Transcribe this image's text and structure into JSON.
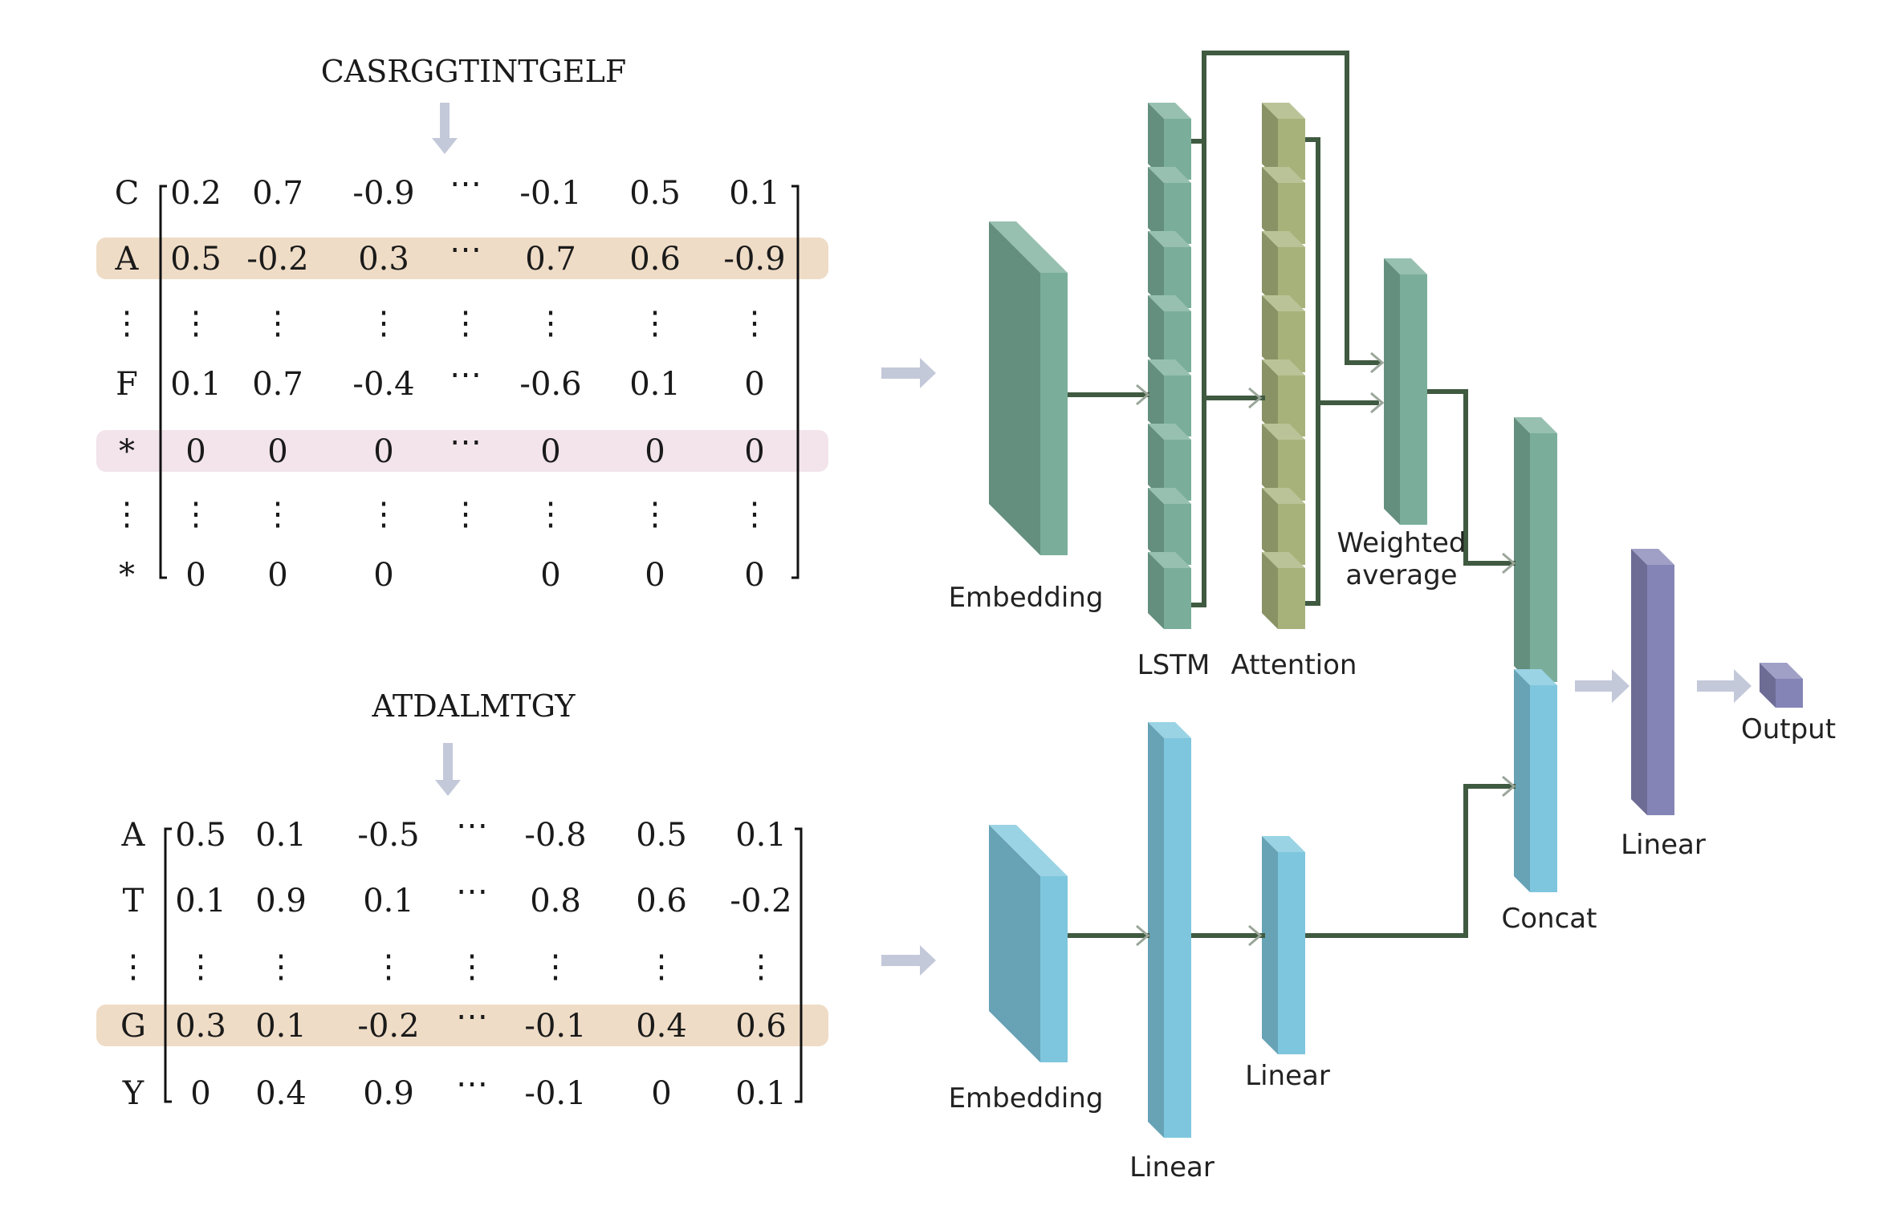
{
  "matrix_top": {
    "sequence": "CASRGGTINTGELF",
    "rows": [
      {
        "label": "C",
        "cells": [
          "0.2",
          "0.7",
          "-0.9",
          "⋯",
          "-0.1",
          "0.5",
          "0.1"
        ],
        "highlight": "none"
      },
      {
        "label": "A",
        "cells": [
          "0.5",
          "-0.2",
          "0.3",
          "⋯",
          "0.7",
          "0.6",
          "-0.9"
        ],
        "highlight": "tan"
      },
      {
        "label": "⋮",
        "cells": [
          "⋮",
          "⋮",
          "⋮",
          "⋮",
          "⋮",
          "⋮",
          "⋮"
        ],
        "highlight": "none"
      },
      {
        "label": "F",
        "cells": [
          "0.1",
          "0.7",
          "-0.4",
          "⋯",
          "-0.6",
          "0.1",
          "0"
        ],
        "highlight": "none"
      },
      {
        "label": "*",
        "cells": [
          "0",
          "0",
          "0",
          "⋯",
          "0",
          "0",
          "0"
        ],
        "highlight": "pink"
      },
      {
        "label": "⋮",
        "cells": [
          "⋮",
          "⋮",
          "⋮",
          "⋮",
          "⋮",
          "⋮",
          "⋮"
        ],
        "highlight": "none"
      },
      {
        "label": "*",
        "cells": [
          "0",
          "0",
          "0",
          "",
          "0",
          "0",
          "0"
        ],
        "highlight": "none"
      }
    ]
  },
  "matrix_bottom": {
    "sequence": "ATDALMTGY",
    "rows": [
      {
        "label": "A",
        "cells": [
          "0.5",
          "0.1",
          "-0.5",
          "⋯",
          "-0.8",
          "0.5",
          "0.1"
        ],
        "highlight": "none"
      },
      {
        "label": "T",
        "cells": [
          "0.1",
          "0.9",
          "0.1",
          "⋯",
          "0.8",
          "0.6",
          "-0.2"
        ],
        "highlight": "none"
      },
      {
        "label": "⋮",
        "cells": [
          "⋮",
          "⋮",
          "⋮",
          "⋮",
          "⋮",
          "⋮",
          "⋮"
        ],
        "highlight": "none"
      },
      {
        "label": "G",
        "cells": [
          "0.3",
          "0.1",
          "-0.2",
          "⋯",
          "-0.1",
          "0.4",
          "0.6"
        ],
        "highlight": "tan"
      },
      {
        "label": "Y",
        "cells": [
          "0",
          "0.4",
          "0.9",
          "⋯",
          "-0.1",
          "0",
          "0.1"
        ],
        "highlight": "none"
      }
    ]
  },
  "network": {
    "top_embedding_label": "Embedding",
    "lstm_label": "LSTM",
    "attention_label": "Attention",
    "weighted_average_label_line1": "Weighted",
    "weighted_average_label_line2": "average",
    "bottom_embedding_label": "Embedding",
    "bottom_linear1_label": "Linear",
    "bottom_linear2_label": "Linear",
    "concat_label": "Concat",
    "final_linear_label": "Linear",
    "output_label": "Output"
  },
  "colors": {
    "green": "#7aae9b",
    "olive": "#a6b27a",
    "blue": "#7ec6dd",
    "purple": "#8584b6",
    "wire": "#3f5a40",
    "arrow": "#c3c9d9",
    "highlight_tan": "#efdcc6",
    "highlight_pink": "#f2e4ea"
  }
}
